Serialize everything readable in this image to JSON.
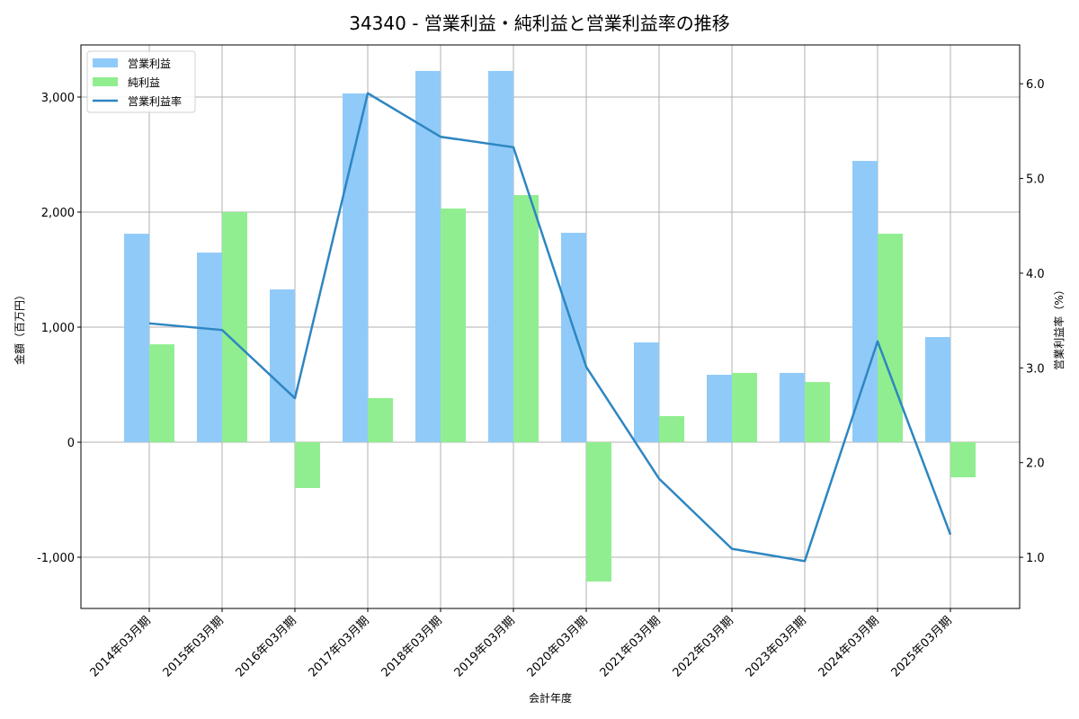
{
  "chart_data": {
    "type": "bar",
    "title": "34340 - 営業利益・純利益と営業利益率の推移",
    "xlabel": "会計年度",
    "ylabel": "金額（百万円）",
    "y2label": "営業利益率（%）",
    "categories": [
      "2014年03月期",
      "2015年03月期",
      "2016年03月期",
      "2017年03月期",
      "2018年03月期",
      "2019年03月期",
      "2020年03月期",
      "2021年03月期",
      "2022年03月期",
      "2023年03月期",
      "2024年03月期",
      "2025年03月期"
    ],
    "series": [
      {
        "name": "営業利益",
        "type": "bar",
        "axis": "left",
        "color": "#90caf9",
        "values": [
          1812,
          1648,
          1328,
          3031,
          3227,
          3227,
          1820,
          867,
          586,
          602,
          2445,
          914
        ]
      },
      {
        "name": "純利益",
        "type": "bar",
        "axis": "left",
        "color": "#90ee90",
        "values": [
          851,
          2000,
          -398,
          383,
          2031,
          2148,
          -1211,
          227,
          602,
          523,
          1812,
          -305
        ]
      },
      {
        "name": "営業利益率",
        "type": "line",
        "axis": "right",
        "color": "#2e86c1",
        "values": [
          3.47,
          3.4,
          2.68,
          5.9,
          5.44,
          5.33,
          3.01,
          1.83,
          1.09,
          0.96,
          3.28,
          1.24
        ]
      }
    ],
    "ylim": [
      -1445,
      3453
    ],
    "y2lim": [
      0.46,
      6.41
    ],
    "yticks": [
      -1000,
      0,
      1000,
      2000,
      3000
    ],
    "ytick_labels": [
      "-1,000",
      "0",
      "1,000",
      "2,000",
      "3,000"
    ],
    "y2ticks": [
      1.0,
      2.0,
      3.0,
      4.0,
      5.0,
      6.0
    ],
    "y2tick_labels": [
      "1.0",
      "2.0",
      "3.0",
      "4.0",
      "5.0",
      "6.0"
    ],
    "grid": true,
    "legend_position": "upper left"
  }
}
